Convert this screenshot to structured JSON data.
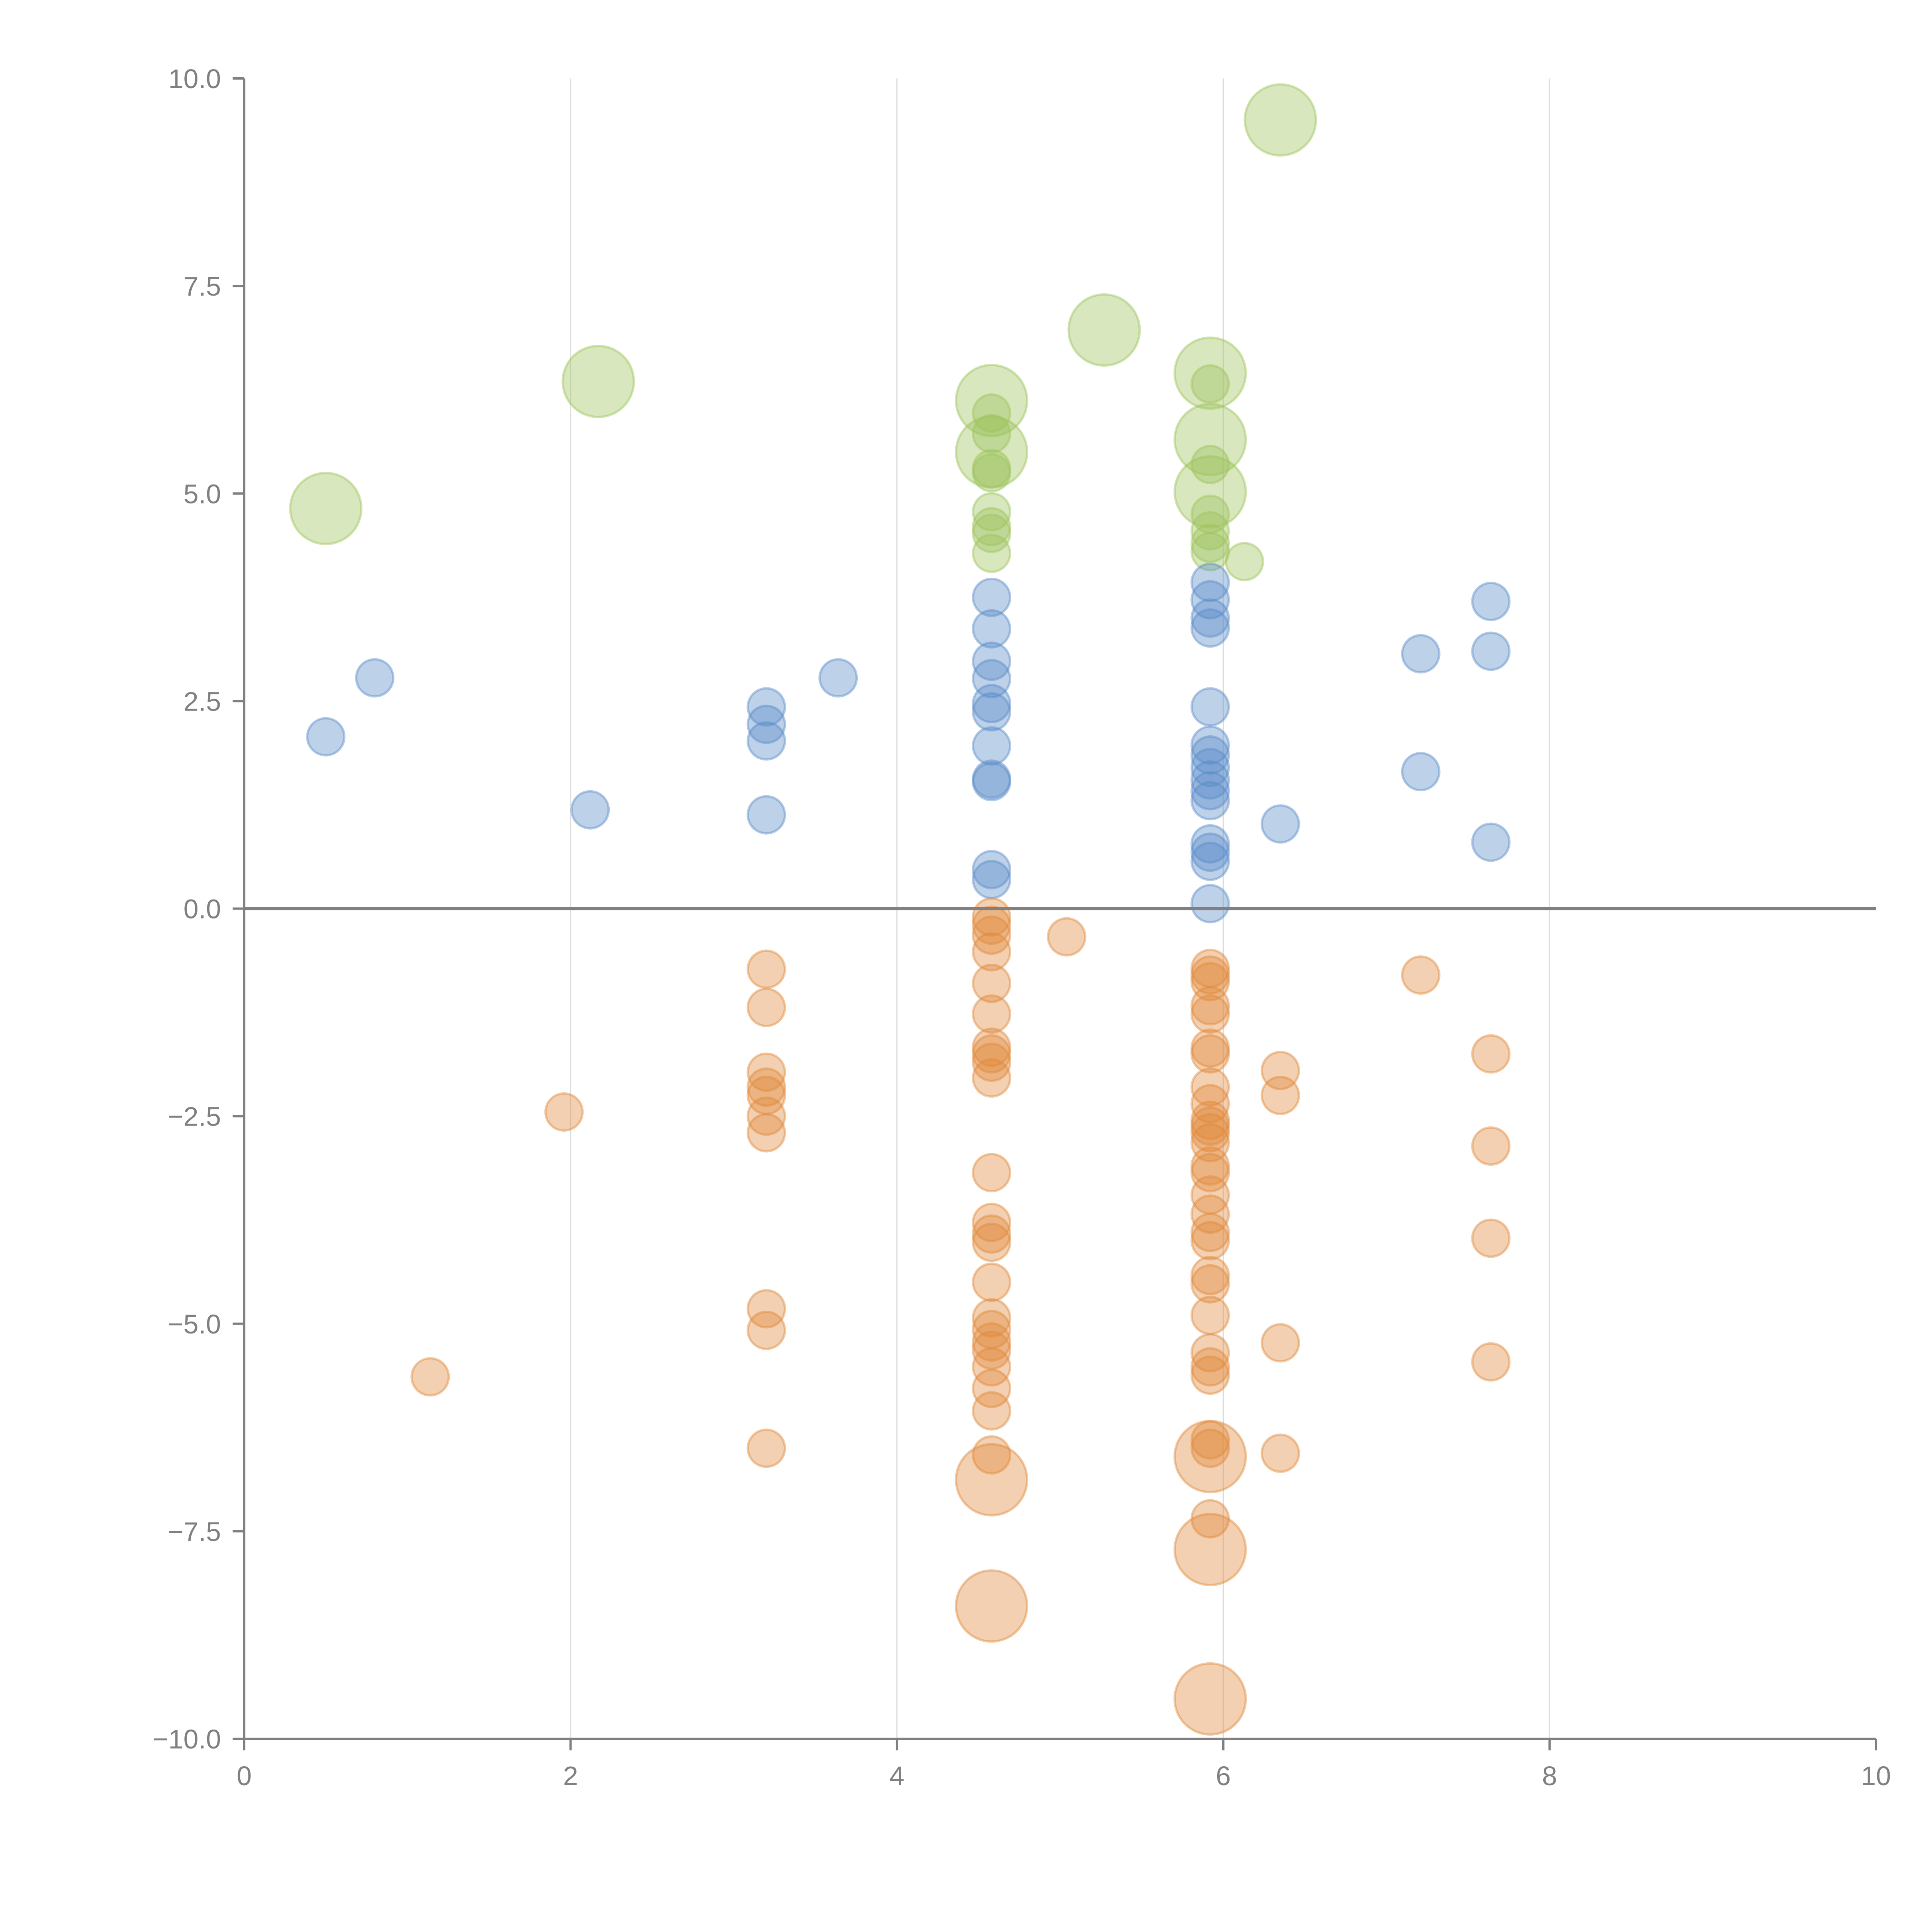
{
  "chart_data": {
    "type": "scatter",
    "title": "",
    "xlabel": "",
    "ylabel": "",
    "xlim": [
      0,
      10
    ],
    "ylim": [
      -10,
      10
    ],
    "grid": "vertical",
    "x_ticks": [
      "0",
      "2",
      "4",
      "6",
      "8",
      "10"
    ],
    "y_ticks": [
      "10.0",
      "7.5",
      "5.0",
      "2.5",
      "0.0",
      "−2.5",
      "−5.0",
      "−7.5",
      "−10.0"
    ],
    "x_tick_values": [
      0,
      2,
      4,
      6,
      8,
      10
    ],
    "y_tick_values": [
      10,
      7.5,
      5,
      2.5,
      0,
      -2.5,
      -5,
      -7.5,
      -10
    ],
    "zero_line": 0,
    "series": [
      {
        "name": "green",
        "color": "#9dc35c",
        "points": [
          {
            "x": 6.35,
            "y": 9.5,
            "size": "large"
          },
          {
            "x": 5.27,
            "y": 6.97,
            "size": "large"
          },
          {
            "x": 2.17,
            "y": 6.35,
            "size": "large"
          },
          {
            "x": 0.5,
            "y": 4.82,
            "size": "large"
          },
          {
            "x": 4.58,
            "y": 6.12,
            "size": "large"
          },
          {
            "x": 4.58,
            "y": 5.5,
            "size": "large"
          },
          {
            "x": 4.58,
            "y": 5.97,
            "size": "small"
          },
          {
            "x": 4.58,
            "y": 5.72,
            "size": "small"
          },
          {
            "x": 4.58,
            "y": 5.3,
            "size": "small"
          },
          {
            "x": 4.58,
            "y": 5.25,
            "size": "small"
          },
          {
            "x": 4.58,
            "y": 4.78,
            "size": "small"
          },
          {
            "x": 4.58,
            "y": 4.6,
            "size": "small"
          },
          {
            "x": 4.58,
            "y": 4.52,
            "size": "small"
          },
          {
            "x": 4.58,
            "y": 4.28,
            "size": "small"
          },
          {
            "x": 5.92,
            "y": 6.45,
            "size": "large"
          },
          {
            "x": 5.92,
            "y": 5.65,
            "size": "large"
          },
          {
            "x": 5.92,
            "y": 5.02,
            "size": "large"
          },
          {
            "x": 5.92,
            "y": 6.32,
            "size": "small"
          },
          {
            "x": 5.92,
            "y": 5.35,
            "size": "small"
          },
          {
            "x": 5.92,
            "y": 4.75,
            "size": "small"
          },
          {
            "x": 5.92,
            "y": 4.55,
            "size": "small"
          },
          {
            "x": 5.92,
            "y": 4.4,
            "size": "small"
          },
          {
            "x": 5.92,
            "y": 4.3,
            "size": "small"
          },
          {
            "x": 6.13,
            "y": 4.18,
            "size": "small"
          }
        ]
      },
      {
        "name": "blue",
        "color": "#5b8bc9",
        "points": [
          {
            "x": 0.5,
            "y": 2.07,
            "size": "small"
          },
          {
            "x": 0.8,
            "y": 2.78,
            "size": "small"
          },
          {
            "x": 2.12,
            "y": 1.19,
            "size": "small"
          },
          {
            "x": 3.2,
            "y": 2.43,
            "size": "small"
          },
          {
            "x": 3.2,
            "y": 2.22,
            "size": "small"
          },
          {
            "x": 3.2,
            "y": 2.02,
            "size": "small"
          },
          {
            "x": 3.2,
            "y": 1.13,
            "size": "small"
          },
          {
            "x": 3.64,
            "y": 2.78,
            "size": "small"
          },
          {
            "x": 4.58,
            "y": 3.75,
            "size": "small"
          },
          {
            "x": 4.58,
            "y": 3.37,
            "size": "small"
          },
          {
            "x": 4.58,
            "y": 2.98,
            "size": "small"
          },
          {
            "x": 4.58,
            "y": 2.77,
            "size": "small"
          },
          {
            "x": 4.58,
            "y": 2.47,
            "size": "small"
          },
          {
            "x": 4.58,
            "y": 2.37,
            "size": "small"
          },
          {
            "x": 4.58,
            "y": 1.96,
            "size": "small"
          },
          {
            "x": 4.58,
            "y": 1.56,
            "size": "small"
          },
          {
            "x": 4.58,
            "y": 1.53,
            "size": "small"
          },
          {
            "x": 4.58,
            "y": 0.47,
            "size": "small"
          },
          {
            "x": 4.58,
            "y": 0.35,
            "size": "small"
          },
          {
            "x": 5.92,
            "y": 3.93,
            "size": "small"
          },
          {
            "x": 5.92,
            "y": 3.72,
            "size": "small"
          },
          {
            "x": 5.92,
            "y": 3.5,
            "size": "small"
          },
          {
            "x": 5.92,
            "y": 3.38,
            "size": "small"
          },
          {
            "x": 5.92,
            "y": 2.43,
            "size": "small"
          },
          {
            "x": 5.92,
            "y": 1.97,
            "size": "small"
          },
          {
            "x": 5.92,
            "y": 1.85,
            "size": "small"
          },
          {
            "x": 5.92,
            "y": 1.7,
            "size": "small"
          },
          {
            "x": 5.92,
            "y": 1.55,
            "size": "small"
          },
          {
            "x": 5.92,
            "y": 1.42,
            "size": "small"
          },
          {
            "x": 5.92,
            "y": 1.3,
            "size": "small"
          },
          {
            "x": 5.92,
            "y": 0.78,
            "size": "small"
          },
          {
            "x": 5.92,
            "y": 0.68,
            "size": "small"
          },
          {
            "x": 5.92,
            "y": 0.57,
            "size": "small"
          },
          {
            "x": 5.92,
            "y": 0.06,
            "size": "small"
          },
          {
            "x": 6.35,
            "y": 1.02,
            "size": "small"
          },
          {
            "x": 7.21,
            "y": 3.07,
            "size": "small"
          },
          {
            "x": 7.21,
            "y": 1.65,
            "size": "small"
          },
          {
            "x": 7.64,
            "y": 3.7,
            "size": "small"
          },
          {
            "x": 7.64,
            "y": 3.1,
            "size": "small"
          },
          {
            "x": 7.64,
            "y": 0.8,
            "size": "small"
          }
        ]
      },
      {
        "name": "orange",
        "color": "#e08a3c",
        "points": [
          {
            "x": 1.14,
            "y": -5.64,
            "size": "small"
          },
          {
            "x": 1.96,
            "y": -2.45,
            "size": "small"
          },
          {
            "x": 3.2,
            "y": -0.73,
            "size": "small"
          },
          {
            "x": 3.2,
            "y": -1.19,
            "size": "small"
          },
          {
            "x": 3.2,
            "y": -1.97,
            "size": "small"
          },
          {
            "x": 3.2,
            "y": -2.15,
            "size": "small"
          },
          {
            "x": 3.2,
            "y": -2.25,
            "size": "small"
          },
          {
            "x": 3.2,
            "y": -2.5,
            "size": "small"
          },
          {
            "x": 3.2,
            "y": -2.7,
            "size": "small"
          },
          {
            "x": 3.2,
            "y": -4.82,
            "size": "small"
          },
          {
            "x": 3.2,
            "y": -5.08,
            "size": "small"
          },
          {
            "x": 3.2,
            "y": -6.5,
            "size": "small"
          },
          {
            "x": 4.58,
            "y": -0.1,
            "size": "small"
          },
          {
            "x": 4.58,
            "y": -0.2,
            "size": "small"
          },
          {
            "x": 4.58,
            "y": -0.32,
            "size": "small"
          },
          {
            "x": 4.58,
            "y": -0.52,
            "size": "small"
          },
          {
            "x": 4.58,
            "y": -0.9,
            "size": "small"
          },
          {
            "x": 4.58,
            "y": -1.27,
            "size": "small"
          },
          {
            "x": 4.58,
            "y": -1.67,
            "size": "small"
          },
          {
            "x": 4.58,
            "y": -1.75,
            "size": "small"
          },
          {
            "x": 4.58,
            "y": -1.85,
            "size": "small"
          },
          {
            "x": 4.58,
            "y": -2.04,
            "size": "small"
          },
          {
            "x": 4.58,
            "y": -3.18,
            "size": "small"
          },
          {
            "x": 4.58,
            "y": -3.78,
            "size": "small"
          },
          {
            "x": 4.58,
            "y": -3.92,
            "size": "small"
          },
          {
            "x": 4.58,
            "y": -4.02,
            "size": "small"
          },
          {
            "x": 4.58,
            "y": -4.5,
            "size": "small"
          },
          {
            "x": 4.58,
            "y": -4.93,
            "size": "small"
          },
          {
            "x": 4.58,
            "y": -5.07,
            "size": "small"
          },
          {
            "x": 4.58,
            "y": -5.22,
            "size": "small"
          },
          {
            "x": 4.58,
            "y": -5.32,
            "size": "small"
          },
          {
            "x": 4.58,
            "y": -5.52,
            "size": "small"
          },
          {
            "x": 4.58,
            "y": -5.78,
            "size": "small"
          },
          {
            "x": 4.58,
            "y": -6.05,
            "size": "small"
          },
          {
            "x": 4.58,
            "y": -6.58,
            "size": "small"
          },
          {
            "x": 4.58,
            "y": -6.88,
            "size": "large"
          },
          {
            "x": 4.58,
            "y": -8.4,
            "size": "large"
          },
          {
            "x": 5.04,
            "y": -0.34,
            "size": "small"
          },
          {
            "x": 5.92,
            "y": -0.72,
            "size": "small"
          },
          {
            "x": 5.92,
            "y": -0.8,
            "size": "small"
          },
          {
            "x": 5.92,
            "y": -0.88,
            "size": "small"
          },
          {
            "x": 5.92,
            "y": -1.17,
            "size": "small"
          },
          {
            "x": 5.92,
            "y": -1.27,
            "size": "small"
          },
          {
            "x": 5.92,
            "y": -1.68,
            "size": "small"
          },
          {
            "x": 5.92,
            "y": -1.75,
            "size": "small"
          },
          {
            "x": 5.92,
            "y": -2.15,
            "size": "small"
          },
          {
            "x": 5.92,
            "y": -2.35,
            "size": "small"
          },
          {
            "x": 5.92,
            "y": -2.55,
            "size": "small"
          },
          {
            "x": 5.92,
            "y": -2.62,
            "size": "small"
          },
          {
            "x": 5.92,
            "y": -2.7,
            "size": "small"
          },
          {
            "x": 5.92,
            "y": -2.82,
            "size": "small"
          },
          {
            "x": 5.92,
            "y": -3.1,
            "size": "small"
          },
          {
            "x": 5.92,
            "y": -3.18,
            "size": "small"
          },
          {
            "x": 5.92,
            "y": -3.45,
            "size": "small"
          },
          {
            "x": 5.92,
            "y": -3.68,
            "size": "small"
          },
          {
            "x": 5.92,
            "y": -3.9,
            "size": "small"
          },
          {
            "x": 5.92,
            "y": -4.0,
            "size": "small"
          },
          {
            "x": 5.92,
            "y": -4.42,
            "size": "small"
          },
          {
            "x": 5.92,
            "y": -4.52,
            "size": "small"
          },
          {
            "x": 5.92,
            "y": -4.9,
            "size": "small"
          },
          {
            "x": 5.92,
            "y": -5.35,
            "size": "small"
          },
          {
            "x": 5.92,
            "y": -5.52,
            "size": "small"
          },
          {
            "x": 5.92,
            "y": -5.62,
            "size": "small"
          },
          {
            "x": 5.92,
            "y": -6.4,
            "size": "small"
          },
          {
            "x": 5.92,
            "y": -6.5,
            "size": "small"
          },
          {
            "x": 5.92,
            "y": -6.6,
            "size": "large"
          },
          {
            "x": 5.92,
            "y": -7.35,
            "size": "small"
          },
          {
            "x": 5.92,
            "y": -7.72,
            "size": "large"
          },
          {
            "x": 5.92,
            "y": -9.52,
            "size": "large"
          },
          {
            "x": 6.35,
            "y": -1.95,
            "size": "small"
          },
          {
            "x": 6.35,
            "y": -2.25,
            "size": "small"
          },
          {
            "x": 6.35,
            "y": -5.23,
            "size": "small"
          },
          {
            "x": 6.35,
            "y": -6.56,
            "size": "small"
          },
          {
            "x": 7.21,
            "y": -0.8,
            "size": "small"
          },
          {
            "x": 7.64,
            "y": -1.75,
            "size": "small"
          },
          {
            "x": 7.64,
            "y": -2.86,
            "size": "small"
          },
          {
            "x": 7.64,
            "y": -3.97,
            "size": "small"
          },
          {
            "x": 7.64,
            "y": -5.46,
            "size": "small"
          }
        ]
      }
    ]
  }
}
